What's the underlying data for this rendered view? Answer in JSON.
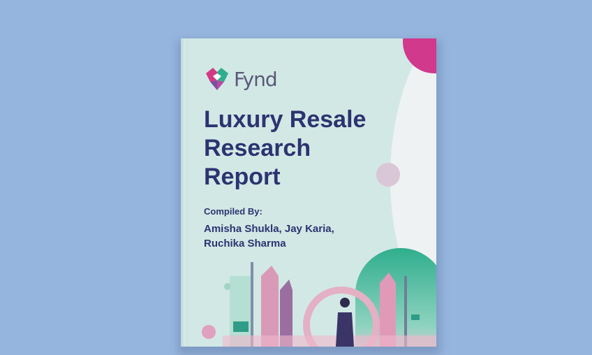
{
  "cover": {
    "brand": "Fynd",
    "title_lines": [
      "Luxury Resale",
      "Research",
      "Report"
    ],
    "compiled_label": "Compiled By:",
    "authors_line1": "Amisha Shukla, Jay Karia,",
    "authors_line2": "Ruchika Sharma"
  },
  "colors": {
    "background": "#95b5de",
    "cover": "#d2e8e5",
    "title": "#2d3370",
    "accent_magenta": "#d0398c",
    "accent_green": "#2fae8e"
  }
}
